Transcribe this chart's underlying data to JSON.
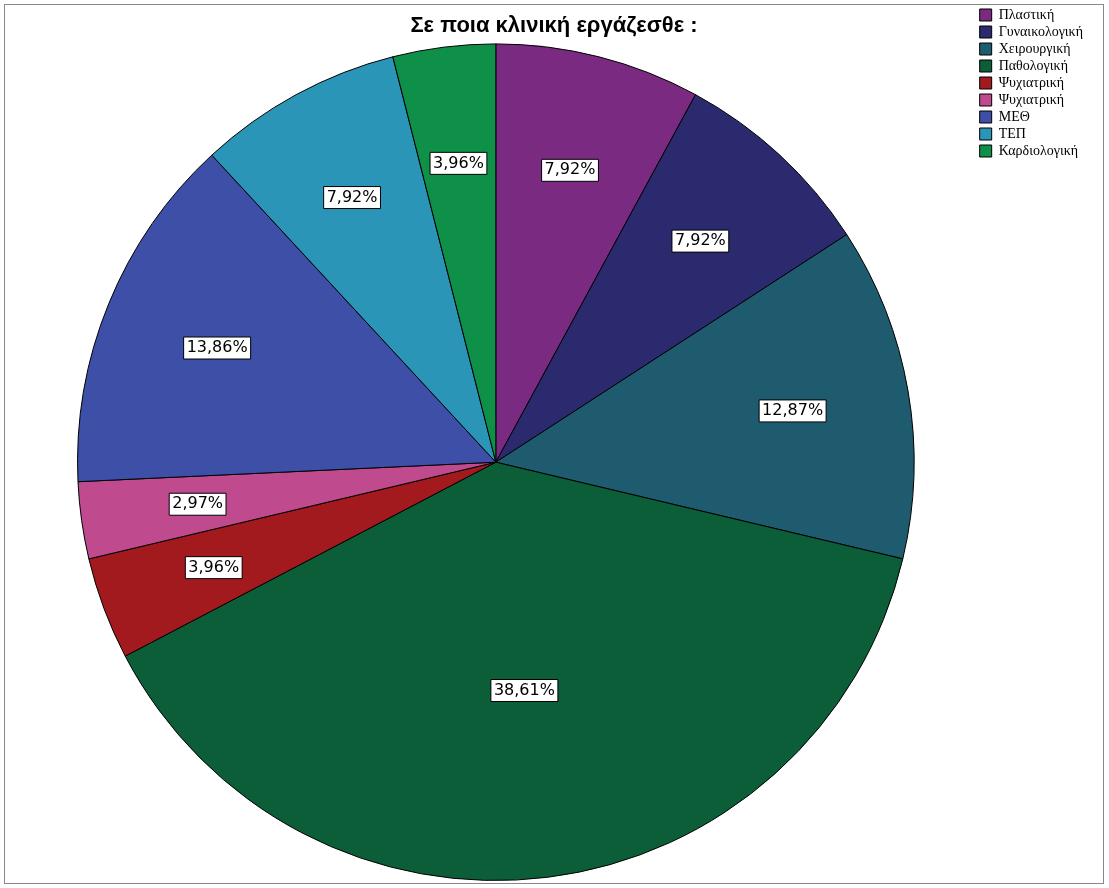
{
  "chart_data": {
    "type": "pie",
    "title": "Σε ποια κλινική εργάζεσθε :",
    "categories": [
      "Πλαστική",
      "Γυναικολογική",
      "Χειρουργική",
      "Παθολογική",
      "Ψυχιατρική",
      "Ψυχιατρική",
      "ΜΕΘ",
      "ΤΕΠ",
      "Καρδιολογική"
    ],
    "values": [
      7.92,
      7.92,
      12.87,
      38.61,
      3.96,
      2.97,
      13.86,
      7.92,
      3.96
    ],
    "colors": [
      "#7b2a82",
      "#2b2a6e",
      "#1e5b6f",
      "#0b5e37",
      "#a31a1e",
      "#bf4a8e",
      "#3d4fa6",
      "#2b95b8",
      "#0f9048"
    ],
    "value_labels": [
      "7,92%",
      "7,92%",
      "12,87%",
      "38,61%",
      "3,96%",
      "2,97%",
      "13,86%",
      "7,92%",
      "3,96%"
    ],
    "legend": "top right"
  }
}
